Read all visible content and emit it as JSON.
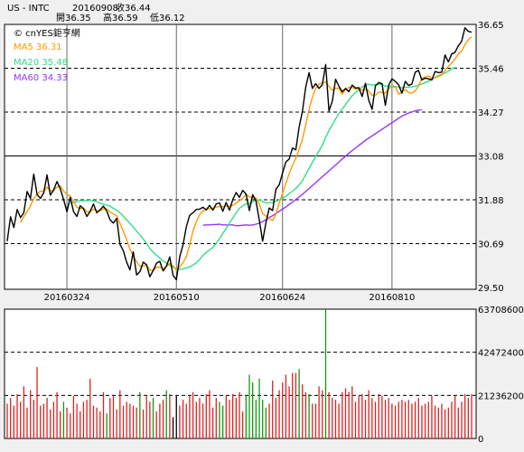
{
  "header": {
    "symbol": "US - INTC",
    "date": "20160908",
    "close_label": "收36.44",
    "open_label": "開36.35",
    "high_label": "高36.59",
    "low_label": "低36.12"
  },
  "watermark": "© cnYES鉅亨網",
  "colors": {
    "price": "#000000",
    "ma5": "#ff9900",
    "ma20": "#33dd88",
    "ma60": "#9933ff",
    "vol_up": "#dd2222",
    "vol_down": "#119911",
    "vol_flat": "#000000",
    "panel_bg": "#ffffff"
  },
  "chart_data": [
    {
      "type": "line",
      "title": "US - INTC",
      "ylim": [
        29.5,
        36.65
      ],
      "yticks": [
        "36.65",
        "35.46",
        "34.27",
        "33.08",
        "31.88",
        "30.69",
        "29.50"
      ],
      "xticks": [
        {
          "label": "20160324",
          "index": 18
        },
        {
          "label": "20160510",
          "index": 51
        },
        {
          "label": "20160624",
          "index": 83
        },
        {
          "label": "20160810",
          "index": 116
        }
      ],
      "grid": true,
      "series": [
        {
          "name": "price",
          "values": [
            30.76,
            31.42,
            31.13,
            31.62,
            31.4,
            31.53,
            32.11,
            31.92,
            32.58,
            32.03,
            31.92,
            32.07,
            32.56,
            32.01,
            32.15,
            32.38,
            32.18,
            31.89,
            31.56,
            31.95,
            31.56,
            31.43,
            31.72,
            31.64,
            31.43,
            31.57,
            31.77,
            31.53,
            31.61,
            31.71,
            31.58,
            31.34,
            31.25,
            31.38,
            30.67,
            30.5,
            30.19,
            29.98,
            30.47,
            29.84,
            29.93,
            30.19,
            30.12,
            29.79,
            29.96,
            30.16,
            30.21,
            29.95,
            30.08,
            30.33,
            29.83,
            29.71,
            30.33,
            30.66,
            31.15,
            31.46,
            31.53,
            31.62,
            31.63,
            31.68,
            31.61,
            31.73,
            31.6,
            31.77,
            31.8,
            31.57,
            31.81,
            31.6,
            31.89,
            32.08,
            31.95,
            32.14,
            32.04,
            31.59,
            32.02,
            31.85,
            31.33,
            30.76,
            31.26,
            31.66,
            31.59,
            32.17,
            32.29,
            32.61,
            32.91,
            32.99,
            33.29,
            33.24,
            33.86,
            34.29,
            34.95,
            35.34,
            34.91,
            35.04,
            34.91,
            35.01,
            35.56,
            34.3,
            34.56,
            35.16,
            34.97,
            34.82,
            34.91,
            34.82,
            35.0,
            34.92,
            34.93,
            34.69,
            35.05,
            34.59,
            34.34,
            34.98,
            35.07,
            35.04,
            34.45,
            35.0,
            35.17,
            35.1,
            35.01,
            34.78,
            35.1,
            34.99,
            35.03,
            35.35,
            35.4,
            35.14,
            35.19,
            35.17,
            35.14,
            35.37,
            35.34,
            35.35,
            35.82,
            35.63,
            35.85,
            35.89,
            36.07,
            36.19,
            36.56,
            36.46,
            36.44
          ]
        },
        {
          "name": "MA5",
          "label": "MA5 36.31",
          "values": [
            null,
            null,
            null,
            null,
            31.27,
            31.42,
            31.56,
            31.72,
            31.91,
            32.03,
            32.12,
            32.11,
            32.23,
            32.12,
            32.14,
            32.23,
            32.26,
            32.12,
            32.03,
            31.99,
            31.83,
            31.68,
            31.64,
            31.66,
            31.56,
            31.56,
            31.63,
            31.59,
            31.58,
            31.64,
            31.64,
            31.55,
            31.5,
            31.45,
            31.24,
            31.03,
            30.8,
            30.54,
            30.36,
            30.2,
            30.08,
            30.08,
            30.11,
            29.97,
            29.96,
            30.05,
            30.05,
            30.01,
            30.07,
            30.15,
            30.08,
            29.98,
            30.06,
            30.17,
            30.34,
            30.66,
            31.03,
            31.29,
            31.48,
            31.58,
            31.61,
            31.65,
            31.65,
            31.68,
            31.7,
            31.69,
            31.71,
            31.71,
            31.73,
            31.79,
            31.86,
            31.92,
            32.04,
            31.96,
            31.95,
            31.93,
            31.77,
            31.51,
            31.44,
            31.37,
            31.32,
            31.49,
            31.79,
            32.06,
            32.33,
            32.59,
            32.82,
            33.01,
            33.26,
            33.53,
            33.93,
            34.34,
            34.67,
            34.91,
            35.03,
            35.05,
            35.09,
            34.96,
            34.86,
            34.92,
            34.91,
            34.76,
            34.88,
            34.94,
            34.94,
            34.89,
            34.92,
            34.86,
            34.88,
            34.84,
            34.72,
            34.73,
            34.81,
            34.8,
            34.78,
            34.91,
            34.95,
            34.95,
            34.75,
            34.81,
            34.88,
            34.8,
            34.78,
            34.85,
            34.97,
            35.18,
            35.22,
            35.25,
            35.17,
            35.2,
            35.24,
            35.27,
            35.4,
            35.51,
            35.6,
            35.71,
            35.85,
            35.93,
            36.1,
            36.23,
            36.31
          ]
        },
        {
          "name": "MA20",
          "label": "MA20 35.48",
          "values": [
            null,
            null,
            null,
            null,
            null,
            null,
            null,
            null,
            null,
            null,
            null,
            null,
            null,
            null,
            null,
            null,
            null,
            null,
            null,
            31.78,
            31.82,
            31.83,
            31.86,
            31.86,
            31.86,
            31.87,
            31.85,
            31.83,
            31.79,
            31.76,
            31.74,
            31.71,
            31.65,
            31.6,
            31.53,
            31.44,
            31.34,
            31.24,
            31.14,
            31.03,
            30.93,
            30.82,
            30.69,
            30.56,
            30.46,
            30.38,
            30.3,
            30.22,
            30.16,
            30.1,
            30.05,
            30.0,
            29.99,
            30.01,
            30.03,
            30.06,
            30.11,
            30.17,
            30.26,
            30.37,
            30.45,
            30.52,
            30.59,
            30.7,
            30.83,
            30.97,
            31.1,
            31.25,
            31.39,
            31.53,
            31.65,
            31.72,
            31.77,
            31.79,
            31.83,
            31.88,
            31.88,
            31.83,
            31.8,
            31.8,
            31.81,
            31.84,
            31.88,
            31.92,
            31.98,
            32.05,
            32.12,
            32.19,
            32.29,
            32.4,
            32.57,
            32.74,
            32.9,
            33.06,
            33.21,
            33.37,
            33.58,
            33.76,
            33.92,
            34.08,
            34.23,
            34.35,
            34.47,
            34.6,
            34.71,
            34.8,
            34.88,
            34.95,
            35.01,
            35.02,
            35.0,
            35.01,
            35.02,
            35.02,
            34.97,
            34.97,
            34.98,
            34.96,
            34.95,
            34.93,
            34.94,
            34.94,
            34.95,
            34.97,
            35.0,
            35.03,
            35.07,
            35.11,
            35.15,
            35.21,
            35.26,
            35.29,
            35.33,
            35.38,
            35.44,
            35.48
          ]
        },
        {
          "name": "MA60",
          "label": "MA60 34.33",
          "values": [
            null,
            null,
            null,
            null,
            null,
            null,
            null,
            null,
            null,
            null,
            null,
            null,
            null,
            null,
            null,
            null,
            null,
            null,
            null,
            null,
            null,
            null,
            null,
            null,
            null,
            null,
            null,
            null,
            null,
            null,
            null,
            null,
            null,
            null,
            null,
            null,
            null,
            null,
            null,
            null,
            null,
            null,
            null,
            null,
            null,
            null,
            null,
            null,
            null,
            null,
            null,
            null,
            null,
            null,
            null,
            null,
            null,
            null,
            null,
            31.19,
            31.2,
            31.2,
            31.21,
            31.21,
            31.22,
            31.2,
            31.2,
            31.2,
            31.2,
            31.18,
            31.18,
            31.19,
            31.2,
            31.19,
            31.2,
            31.22,
            31.25,
            31.29,
            31.34,
            31.4,
            31.45,
            31.51,
            31.57,
            31.63,
            31.69,
            31.76,
            31.82,
            31.89,
            31.96,
            32.03,
            32.11,
            32.19,
            32.27,
            32.35,
            32.43,
            32.51,
            32.59,
            32.67,
            32.75,
            32.83,
            32.91,
            32.99,
            33.07,
            33.15,
            33.22,
            33.29,
            33.36,
            33.43,
            33.5,
            33.56,
            33.62,
            33.68,
            33.74,
            33.8,
            33.86,
            33.92,
            33.98,
            34.04,
            34.1,
            34.16,
            34.2,
            34.24,
            34.27,
            34.3,
            34.32,
            34.33
          ]
        }
      ]
    },
    {
      "type": "bar",
      "ylim": [
        0,
        63708600
      ],
      "yticks": [
        "63708600",
        "42472400",
        "21236200",
        "0"
      ],
      "grid": true,
      "series": [
        {
          "name": "volume",
          "values": [
            18,
            21,
            17,
            23,
            19,
            27,
            16,
            25,
            20,
            37,
            17,
            18,
            21,
            15,
            19,
            24,
            14,
            19,
            16,
            13,
            22,
            18,
            14,
            19,
            20,
            31,
            17,
            16,
            14,
            24,
            13,
            21,
            22,
            15,
            25,
            17,
            19,
            18,
            17,
            16,
            24,
            15,
            22,
            19,
            21,
            14,
            18,
            20,
            25,
            23,
            11,
            22,
            17,
            20,
            18,
            22,
            24,
            19,
            21,
            18,
            23,
            25,
            16,
            21,
            19,
            17,
            22,
            20,
            23,
            21,
            24,
            14,
            22,
            33,
            29,
            20,
            31,
            20,
            16,
            18,
            30,
            21,
            25,
            29,
            33,
            27,
            34,
            34,
            36,
            28,
            24,
            23,
            18,
            18,
            27,
            25,
            67,
            24,
            21,
            20,
            18,
            24,
            26,
            24,
            27,
            19,
            22,
            23,
            20,
            25,
            21,
            19,
            23,
            22,
            20,
            21,
            18,
            17,
            19,
            20,
            19,
            20,
            18,
            19,
            21,
            17,
            18,
            19,
            22,
            17,
            16,
            18,
            15,
            16,
            19,
            22,
            16,
            19,
            23,
            21,
            23
          ]
        }
      ],
      "colors_by_bar": [
        "r",
        "r",
        "r",
        "r",
        "r",
        "r",
        "r",
        "r",
        "r",
        "r",
        "r",
        "r",
        "r",
        "r",
        "r",
        "r",
        "r",
        "g",
        "r",
        "r",
        "r",
        "r",
        "r",
        "r",
        "r",
        "r",
        "r",
        "r",
        "r",
        "r",
        "g",
        "r",
        "r",
        "r",
        "r",
        "r",
        "r",
        "r",
        "r",
        "r",
        "g",
        "r",
        "r",
        "r",
        "g",
        "r",
        "r",
        "r",
        "g",
        "r",
        "k",
        "k",
        "r",
        "r",
        "r",
        "r",
        "r",
        "r",
        "r",
        "r",
        "r",
        "r",
        "r",
        "r",
        "g",
        "g",
        "r",
        "r",
        "r",
        "r",
        "r",
        "r",
        "g",
        "g",
        "g",
        "g",
        "g",
        "g",
        "g",
        "r",
        "r",
        "r",
        "r",
        "r",
        "r",
        "r",
        "r",
        "r",
        "g",
        "r",
        "r",
        "g",
        "r",
        "r",
        "r",
        "r",
        "g",
        "r",
        "r",
        "r",
        "r",
        "r",
        "r",
        "r",
        "r",
        "r",
        "r",
        "r",
        "r",
        "r",
        "r",
        "r",
        "r",
        "r",
        "r",
        "r",
        "r",
        "r",
        "r",
        "r",
        "r",
        "r",
        "r",
        "r",
        "r",
        "r",
        "r",
        "r",
        "r",
        "r",
        "r",
        "r",
        "r",
        "r",
        "r",
        "r",
        "r",
        "r",
        "r",
        "r",
        "r"
      ]
    }
  ]
}
